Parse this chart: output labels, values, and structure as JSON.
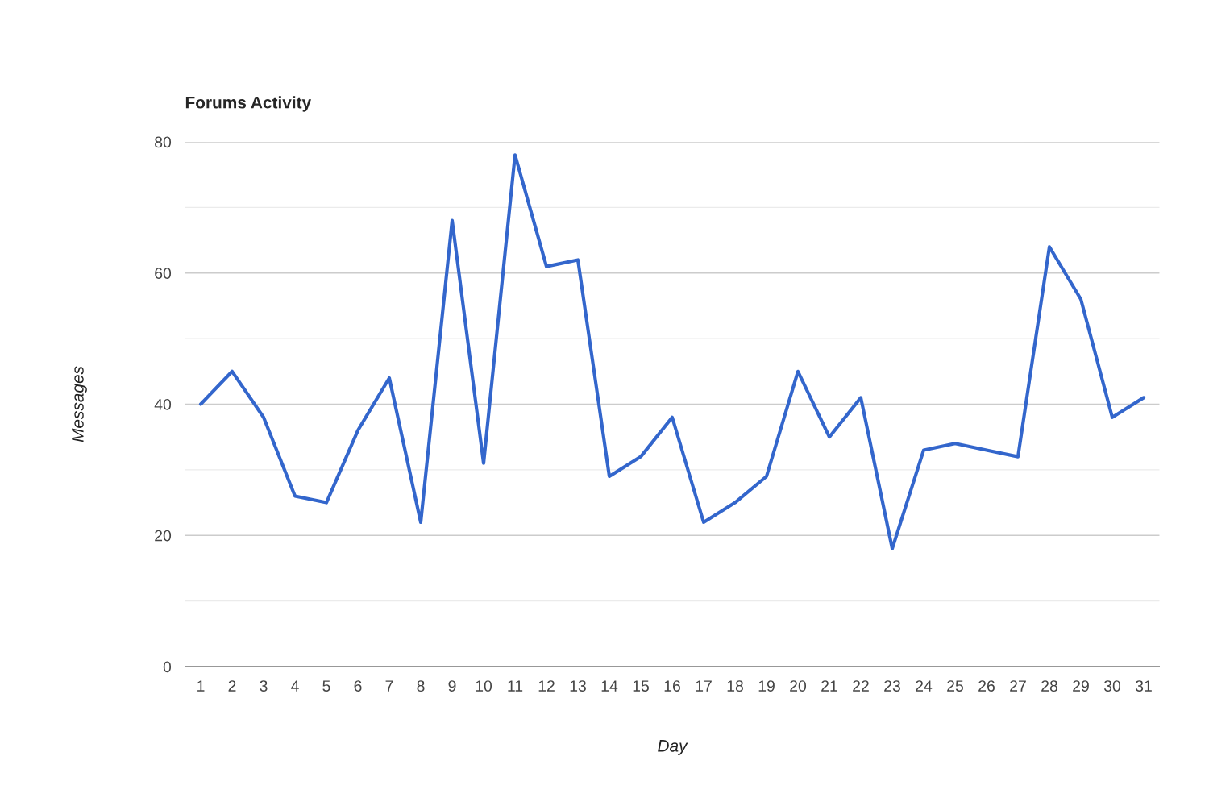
{
  "chart_data": {
    "type": "line",
    "title": "Forums Activity",
    "xlabel": "Day",
    "ylabel": "Messages",
    "categories": [
      "1",
      "2",
      "3",
      "4",
      "5",
      "6",
      "7",
      "8",
      "9",
      "10",
      "11",
      "12",
      "13",
      "14",
      "15",
      "16",
      "17",
      "18",
      "19",
      "20",
      "21",
      "22",
      "23",
      "24",
      "25",
      "26",
      "27",
      "28",
      "29",
      "30",
      "31"
    ],
    "series": [
      {
        "color": "#3366cc",
        "values": [
          40,
          45,
          38,
          26,
          25,
          36,
          44,
          22,
          68,
          31,
          78,
          61,
          62,
          29,
          32,
          38,
          22,
          25,
          29,
          45,
          35,
          41,
          18,
          33,
          34,
          33,
          32,
          64,
          56,
          38,
          41
        ]
      }
    ],
    "ylim": [
      0,
      80
    ],
    "yticks": [
      0,
      {
        "value": 10,
        "label": null
      },
      20,
      {
        "value": 30,
        "label": null
      },
      40,
      {
        "value": 50,
        "label": null
      },
      60,
      {
        "value": 70,
        "label": null
      },
      80
    ],
    "grid": "y",
    "legend": false,
    "marker": "none",
    "line_style": "solid"
  }
}
